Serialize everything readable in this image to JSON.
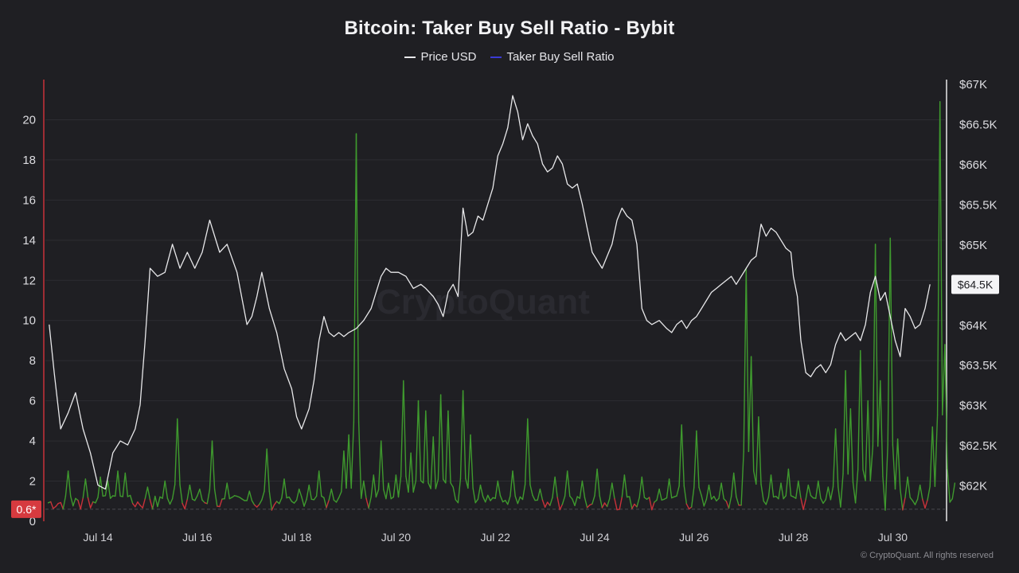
{
  "title": "Bitcoin: Taker Buy Sell Ratio - Bybit",
  "copyright": "© CryptoQuant. All rights reserved",
  "watermark": "CryptoQuant",
  "legend": [
    {
      "name": "Price USD",
      "color": "#e8e8ea"
    },
    {
      "name": "Taker Buy Sell Ratio",
      "color": "#3b3bd6"
    }
  ],
  "colors": {
    "background": "#1f1f23",
    "price_line": "#e8e8ea",
    "ratio_above": "#3f9a2e",
    "ratio_below": "#c8323a",
    "left_axis": "#c8323a",
    "right_axis": "#e8e8ea"
  },
  "badges": {
    "left_value": "0.6*",
    "right_value": "$64.5K"
  },
  "chart_data": {
    "type": "line",
    "x_tick_labels": [
      "Jul 14",
      "Jul 16",
      "Jul 18",
      "Jul 20",
      "Jul 22",
      "Jul 24",
      "Jul 26",
      "Jul 28",
      "Jul 30"
    ],
    "x_range_days": [
      13.0,
      30.9
    ],
    "left_axis": {
      "ticks": [
        0,
        2,
        4,
        6,
        8,
        10,
        12,
        14,
        16,
        18,
        20
      ],
      "tick_labels": [
        "0",
        "2",
        "4",
        "6",
        "8",
        "10",
        "12",
        "14",
        "16",
        "18",
        "20"
      ],
      "ylim": [
        0,
        22
      ]
    },
    "right_axis": {
      "ticks": [
        62000,
        62500,
        63000,
        63500,
        64000,
        64500,
        65000,
        65500,
        66000,
        66500,
        67000
      ],
      "tick_labels": [
        "$62K",
        "$62.5K",
        "$63K",
        "$63.5K",
        "$64K",
        "$64.5K",
        "$65K",
        "$65.5K",
        "$66K",
        "$66.5K",
        "$67K"
      ],
      "ylim": [
        61550,
        67050
      ]
    },
    "ratio_threshold": 0.92,
    "series": [
      {
        "name": "Price USD",
        "axis": "right",
        "points": [
          [
            13.02,
            64000
          ],
          [
            13.12,
            63400
          ],
          [
            13.25,
            62700
          ],
          [
            13.4,
            62900
          ],
          [
            13.55,
            63150
          ],
          [
            13.7,
            62700
          ],
          [
            13.85,
            62400
          ],
          [
            14.0,
            62000
          ],
          [
            14.15,
            61950
          ],
          [
            14.3,
            62400
          ],
          [
            14.45,
            62550
          ],
          [
            14.6,
            62500
          ],
          [
            14.75,
            62700
          ],
          [
            14.85,
            63000
          ],
          [
            14.95,
            63800
          ],
          [
            15.05,
            64700
          ],
          [
            15.2,
            64600
          ],
          [
            15.35,
            64650
          ],
          [
            15.5,
            65000
          ],
          [
            15.65,
            64700
          ],
          [
            15.8,
            64900
          ],
          [
            15.95,
            64700
          ],
          [
            16.1,
            64900
          ],
          [
            16.25,
            65300
          ],
          [
            16.45,
            64900
          ],
          [
            16.6,
            65000
          ],
          [
            16.8,
            64650
          ],
          [
            17.0,
            64000
          ],
          [
            17.1,
            64100
          ],
          [
            17.2,
            64350
          ],
          [
            17.3,
            64650
          ],
          [
            17.45,
            64200
          ],
          [
            17.6,
            63900
          ],
          [
            17.75,
            63450
          ],
          [
            17.9,
            63200
          ],
          [
            18.0,
            62850
          ],
          [
            18.1,
            62700
          ],
          [
            18.25,
            62950
          ],
          [
            18.35,
            63300
          ],
          [
            18.45,
            63800
          ],
          [
            18.55,
            64100
          ],
          [
            18.65,
            63900
          ],
          [
            18.75,
            63850
          ],
          [
            18.85,
            63900
          ],
          [
            18.95,
            63850
          ],
          [
            19.05,
            63900
          ],
          [
            19.2,
            63950
          ],
          [
            19.35,
            64050
          ],
          [
            19.5,
            64200
          ],
          [
            19.6,
            64400
          ],
          [
            19.7,
            64600
          ],
          [
            19.8,
            64700
          ],
          [
            19.9,
            64650
          ],
          [
            20.05,
            64650
          ],
          [
            20.2,
            64600
          ],
          [
            20.35,
            64450
          ],
          [
            20.5,
            64500
          ],
          [
            20.6,
            64450
          ],
          [
            20.75,
            64350
          ],
          [
            20.85,
            64250
          ],
          [
            20.95,
            64100
          ],
          [
            21.05,
            64400
          ],
          [
            21.15,
            64500
          ],
          [
            21.25,
            64350
          ],
          [
            21.35,
            65450
          ],
          [
            21.45,
            65100
          ],
          [
            21.55,
            65150
          ],
          [
            21.65,
            65350
          ],
          [
            21.75,
            65300
          ],
          [
            21.85,
            65500
          ],
          [
            21.95,
            65700
          ],
          [
            22.05,
            66100
          ],
          [
            22.15,
            66250
          ],
          [
            22.25,
            66450
          ],
          [
            22.35,
            66850
          ],
          [
            22.45,
            66650
          ],
          [
            22.55,
            66300
          ],
          [
            22.65,
            66500
          ],
          [
            22.75,
            66350
          ],
          [
            22.85,
            66250
          ],
          [
            22.95,
            66000
          ],
          [
            23.05,
            65900
          ],
          [
            23.15,
            65950
          ],
          [
            23.25,
            66100
          ],
          [
            23.35,
            66000
          ],
          [
            23.45,
            65750
          ],
          [
            23.55,
            65700
          ],
          [
            23.65,
            65750
          ],
          [
            23.75,
            65500
          ],
          [
            23.85,
            65200
          ],
          [
            23.95,
            64900
          ],
          [
            24.05,
            64800
          ],
          [
            24.15,
            64700
          ],
          [
            24.25,
            64850
          ],
          [
            24.35,
            65000
          ],
          [
            24.45,
            65300
          ],
          [
            24.55,
            65450
          ],
          [
            24.65,
            65350
          ],
          [
            24.75,
            65300
          ],
          [
            24.85,
            65000
          ],
          [
            24.95,
            64200
          ],
          [
            25.05,
            64050
          ],
          [
            25.15,
            64000
          ],
          [
            25.3,
            64050
          ],
          [
            25.45,
            63950
          ],
          [
            25.55,
            63900
          ],
          [
            25.65,
            64000
          ],
          [
            25.75,
            64050
          ],
          [
            25.85,
            63950
          ],
          [
            25.95,
            64050
          ],
          [
            26.05,
            64100
          ],
          [
            26.15,
            64200
          ],
          [
            26.25,
            64300
          ],
          [
            26.35,
            64400
          ],
          [
            26.45,
            64450
          ],
          [
            26.55,
            64500
          ],
          [
            26.65,
            64550
          ],
          [
            26.75,
            64600
          ],
          [
            26.85,
            64500
          ],
          [
            26.95,
            64600
          ],
          [
            27.05,
            64700
          ],
          [
            27.15,
            64800
          ],
          [
            27.25,
            64850
          ],
          [
            27.35,
            65250
          ],
          [
            27.45,
            65100
          ],
          [
            27.55,
            65200
          ],
          [
            27.65,
            65150
          ],
          [
            27.75,
            65050
          ],
          [
            27.85,
            64950
          ],
          [
            27.95,
            64900
          ],
          [
            28.0,
            64600
          ],
          [
            28.08,
            64350
          ],
          [
            28.15,
            63800
          ],
          [
            28.25,
            63400
          ],
          [
            28.35,
            63350
          ],
          [
            28.45,
            63450
          ],
          [
            28.55,
            63500
          ],
          [
            28.65,
            63400
          ],
          [
            28.75,
            63500
          ],
          [
            28.85,
            63750
          ],
          [
            28.95,
            63900
          ],
          [
            29.05,
            63800
          ],
          [
            29.15,
            63850
          ],
          [
            29.25,
            63900
          ],
          [
            29.35,
            63800
          ],
          [
            29.45,
            64000
          ],
          [
            29.55,
            64400
          ],
          [
            29.65,
            64600
          ],
          [
            29.75,
            64300
          ],
          [
            29.85,
            64400
          ],
          [
            29.95,
            64100
          ],
          [
            30.05,
            63800
          ],
          [
            30.15,
            63600
          ],
          [
            30.25,
            64200
          ],
          [
            30.35,
            64100
          ],
          [
            30.45,
            63950
          ],
          [
            30.55,
            64000
          ],
          [
            30.65,
            64200
          ],
          [
            30.75,
            64500
          ]
        ]
      },
      {
        "name": "Taker Buy Sell Ratio",
        "axis": "left",
        "step_days": 0.05,
        "spikes": [
          [
            13.4,
            2.5
          ],
          [
            13.75,
            2.1
          ],
          [
            14.05,
            2.2
          ],
          [
            14.2,
            2.0
          ],
          [
            14.4,
            2.5
          ],
          [
            14.55,
            2.4
          ],
          [
            15.0,
            1.7
          ],
          [
            15.35,
            2.0
          ],
          [
            15.6,
            5.1
          ],
          [
            15.85,
            1.8
          ],
          [
            16.05,
            1.6
          ],
          [
            16.3,
            4.0
          ],
          [
            16.6,
            1.9
          ],
          [
            17.05,
            1.5
          ],
          [
            17.4,
            3.6
          ],
          [
            17.75,
            2.1
          ],
          [
            18.05,
            1.6
          ],
          [
            18.25,
            1.8
          ],
          [
            18.45,
            2.5
          ],
          [
            18.7,
            1.6
          ],
          [
            18.95,
            3.5
          ],
          [
            19.05,
            4.3
          ],
          [
            19.2,
            19.3
          ],
          [
            19.35,
            2.0
          ],
          [
            19.55,
            2.3
          ],
          [
            19.7,
            4.0
          ],
          [
            19.85,
            1.9
          ],
          [
            20.0,
            2.3
          ],
          [
            20.15,
            7.0
          ],
          [
            20.3,
            3.4
          ],
          [
            20.45,
            6.0
          ],
          [
            20.6,
            5.5
          ],
          [
            20.75,
            4.2
          ],
          [
            20.9,
            6.3
          ],
          [
            21.05,
            5.5
          ],
          [
            21.15,
            1.7
          ],
          [
            21.35,
            6.5
          ],
          [
            21.5,
            4.3
          ],
          [
            21.7,
            1.8
          ],
          [
            22.05,
            2.0
          ],
          [
            22.35,
            2.5
          ],
          [
            22.65,
            5.1
          ],
          [
            22.9,
            1.6
          ],
          [
            23.2,
            2.2
          ],
          [
            23.45,
            2.5
          ],
          [
            23.75,
            2.0
          ],
          [
            24.05,
            2.6
          ],
          [
            24.35,
            1.9
          ],
          [
            24.6,
            2.3
          ],
          [
            24.95,
            2.2
          ],
          [
            25.3,
            1.6
          ],
          [
            25.5,
            2.1
          ],
          [
            25.75,
            4.8
          ],
          [
            26.05,
            4.5
          ],
          [
            26.3,
            1.8
          ],
          [
            26.55,
            1.9
          ],
          [
            26.8,
            2.4
          ],
          [
            27.05,
            12.6
          ],
          [
            27.15,
            8.2
          ],
          [
            27.3,
            5.2
          ],
          [
            27.55,
            2.3
          ],
          [
            27.75,
            1.9
          ],
          [
            27.9,
            2.6
          ],
          [
            28.1,
            2.0
          ],
          [
            28.3,
            1.8
          ],
          [
            28.5,
            2.0
          ],
          [
            28.7,
            1.7
          ],
          [
            28.85,
            4.6
          ],
          [
            29.05,
            7.5
          ],
          [
            29.15,
            5.6
          ],
          [
            29.35,
            8.5
          ],
          [
            29.5,
            6.0
          ],
          [
            29.65,
            13.8
          ],
          [
            29.75,
            7.0
          ],
          [
            29.95,
            14.1
          ],
          [
            30.1,
            4.1
          ],
          [
            30.3,
            2.2
          ],
          [
            30.55,
            1.8
          ],
          [
            30.8,
            4.7
          ],
          [
            30.95,
            20.9
          ],
          [
            31.05,
            8.8
          ],
          [
            31.25,
            1.9
          ]
        ]
      }
    ]
  }
}
